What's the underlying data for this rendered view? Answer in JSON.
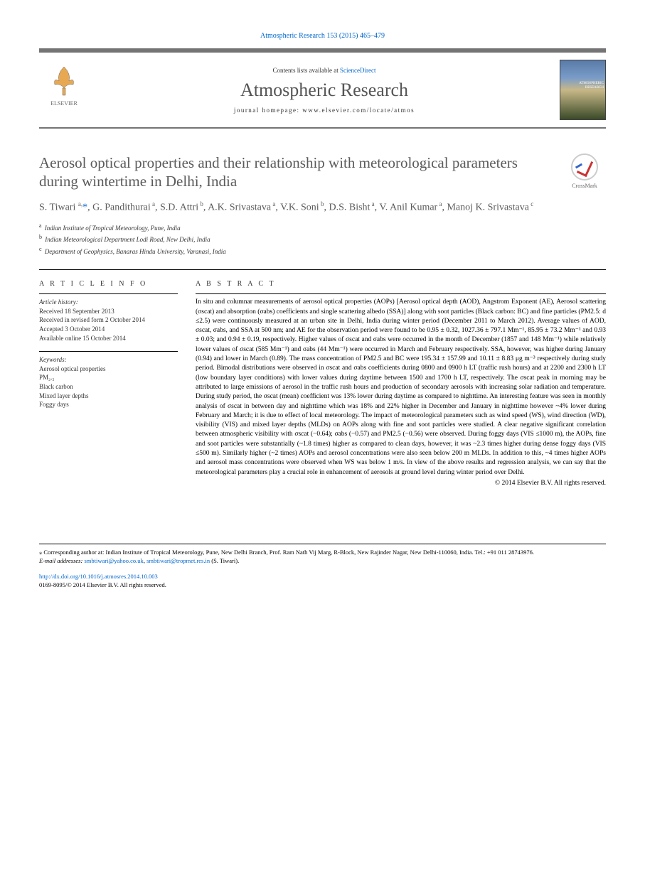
{
  "header": {
    "citation": "Atmospheric Research 153 (2015) 465–479",
    "contents_prefix": "Contents lists available at ",
    "contents_link": "ScienceDirect",
    "journal_name": "Atmospheric Research",
    "homepage_prefix": "journal homepage: ",
    "homepage_url": "www.elsevier.com/locate/atmos",
    "elsevier_label": "ELSEVIER",
    "cover_text": "ATMOSPHERIC RESEARCH"
  },
  "crossmark": {
    "label": "CrossMark"
  },
  "title": "Aerosol optical properties and their relationship with meteorological parameters during wintertime in Delhi, India",
  "authors_html": "S. Tiwari <sup>a,</sup><span class='star'>*</span>, G. Pandithurai<sup> a</sup>, S.D. Attri<sup> b</sup>, A.K. Srivastava<sup> a</sup>, V.K. Soni<sup> b</sup>, D.S. Bisht<sup> a</sup>, V. Anil Kumar<sup> a</sup>, Manoj K. Srivastava<sup> c</sup>",
  "affiliations": [
    {
      "sup": "a",
      "text": "Indian Institute of Tropical Meteorology, Pune, India"
    },
    {
      "sup": "b",
      "text": "Indian Meteorological Department Lodi Road, New Delhi, India"
    },
    {
      "sup": "c",
      "text": "Department of Geophysics, Banaras Hindu University, Varanasi, India"
    }
  ],
  "article_info": {
    "head": "A R T I C L E  I N F O",
    "history_label": "Article history:",
    "received": "Received 18 September 2013",
    "revised": "Received in revised form 2 October 2014",
    "accepted": "Accepted 3 October 2014",
    "online": "Available online 15 October 2014",
    "keywords_label": "Keywords:",
    "keywords": [
      "Aerosol optical properties",
      "PM₂.₅",
      "Black carbon",
      "Mixed layer depths",
      "Foggy days"
    ]
  },
  "abstract": {
    "head": "A B S T R A C T",
    "text": "In situ and columnar measurements of aerosol optical properties (AOPs) [Aerosol optical depth (AOD), Angstrom Exponent (AE), Aerosol scattering (σscat) and absorption (σabs) coefficients and single scattering albedo (SSA)] along with soot particles (Black carbon: BC) and fine particles (PM2.5: d ≤2.5) were continuously measured at an urban site in Delhi, India during winter period (December 2011 to March 2012). Average values of AOD, σscat, σabs, and SSA at 500 nm; and AE for the observation period were found to be 0.95 ± 0.32, 1027.36 ± 797.1 Mm⁻¹, 85.95 ± 73.2 Mm⁻¹ and 0.93 ± 0.03; and 0.94 ± 0.19, respectively. Higher values of σscat and σabs were occurred in the month of December (1857 and 148 Mm⁻¹) while relatively lower values of σscat (585 Mm⁻¹) and σabs (44 Mm⁻¹) were occurred in March and February respectively. SSA, however, was higher during January (0.94) and lower in March (0.89). The mass concentration of PM2.5 and BC were 195.34 ± 157.99 and 10.11 ± 8.83 μg m⁻³ respectively during study period. Bimodal distributions were observed in σscat and σabs coefficients during 0800 and 0900 h LT (traffic rush hours) and at 2200 and 2300 h LT (low boundary layer conditions) with lower values during daytime between 1500 and 1700 h LT, respectively. The σscat peak in morning may be attributed to large emissions of aerosol in the traffic rush hours and production of secondary aerosols with increasing solar radiation and temperature. During study period, the σscat (mean) coefficient was 13% lower during daytime as compared to nighttime. An interesting feature was seen in monthly analysis of σscat in between day and nighttime which was 18% and 22% higher in December and January in nighttime however ~4% lower during February and March; it is due to effect of local meteorology. The impact of meteorological parameters such as wind speed (WS), wind direction (WD), visibility (VIS) and mixed layer depths (MLDs) on AOPs along with fine and soot particles were studied. A clear negative significant correlation between atmospheric visibility with σscat (−0.64); σabs (−0.57) and PM2.5 (−0.56) were observed. During foggy days (VIS ≤1000 m), the AOPs, fine and soot particles were substantially (~1.8 times) higher as compared to clean days, however, it was ~2.3 times higher during dense foggy days (VIS ≤500 m). Similarly higher (~2 times) AOPs and aerosol concentrations were also seen below 200 m MLDs. In addition to this, ~4 times higher AOPs and aerosol mass concentrations were observed when WS was below 1 m/s. In view of the above results and regression analysis, we can say that the meteorological parameters play a crucial role in enhancement of aerosols at ground level during winter period over Delhi.",
    "copyright": "© 2014 Elsevier B.V. All rights reserved."
  },
  "footer": {
    "corresponding": "⁎ Corresponding author at: Indian Institute of Tropical Meteorology, Pune, New Delhi Branch, Prof. Ram Nath Vij Marg, R-Block, New Rajinder Nagar, New Delhi-110060, India. Tel.: +91 011 28743976.",
    "email_label": "E-mail addresses: ",
    "email1": "smbtiwari@yahoo.co.uk",
    "email2": "smbtiwari@tropmet.res.in",
    "email_suffix": " (S. Tiwari).",
    "doi": "http://dx.doi.org/10.1016/j.atmosres.2014.10.003",
    "issn": "0169-8095/© 2014 Elsevier B.V. All rights reserved."
  },
  "colors": {
    "link": "#0066cc",
    "title_gray": "#5a5a5a",
    "border_gray": "#747474"
  }
}
